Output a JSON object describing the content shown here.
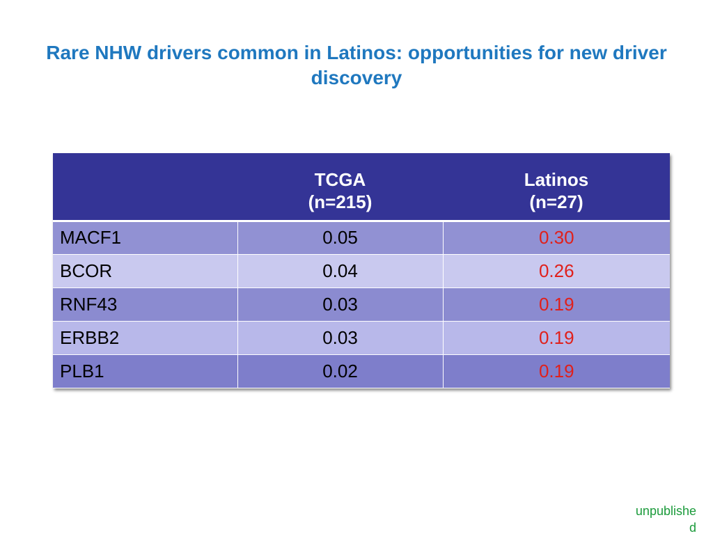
{
  "slide": {
    "title": "Rare NHW drivers common in Latinos: opportunities for new driver discovery",
    "footnote_line1": "unpublishe",
    "footnote_line2": "d"
  },
  "table": {
    "headers": [
      {
        "line1": "",
        "line2": ""
      },
      {
        "line1": "TCGA",
        "line2": "(n=215)"
      },
      {
        "line1": "Latinos",
        "line2": "(n=27)"
      }
    ],
    "rows": [
      {
        "gene": "MACF1",
        "tcga": "0.05",
        "latinos": "0.30"
      },
      {
        "gene": "BCOR",
        "tcga": "0.04",
        "latinos": "0.26"
      },
      {
        "gene": "RNF43",
        "tcga": "0.03",
        "latinos": "0.19"
      },
      {
        "gene": "ERBB2",
        "tcga": "0.03",
        "latinos": "0.19"
      },
      {
        "gene": "PLB1",
        "tcga": "0.02",
        "latinos": "0.19"
      }
    ]
  },
  "colors": {
    "title": "#1f78bf",
    "header_bg": "#343496",
    "latino_values": "#e0201b",
    "footnote": "#1a9a3a"
  }
}
